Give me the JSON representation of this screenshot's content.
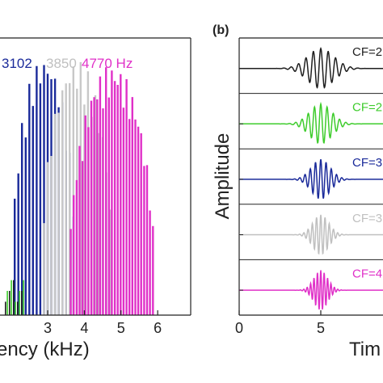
{
  "chart_data": [
    {
      "type": "bar",
      "panel_label": "",
      "xlabel": "ency (kHz)",
      "xticks": [
        "3",
        "4",
        "5",
        "6"
      ],
      "xlim": [
        1.7,
        6.9
      ],
      "ylim": [
        0,
        1.0
      ],
      "legend": [
        {
          "text": "3102",
          "color": "#1a2a9a"
        },
        {
          "text": "3850",
          "color": "#c0c0c0"
        },
        {
          "text": "4770 Hz",
          "color": "#e030c8"
        }
      ],
      "series": [
        {
          "name": "3102",
          "color": "#1a2a9a",
          "center": 2.9,
          "width": 0.9,
          "peak": 0.96,
          "spacing": 0.1
        },
        {
          "name": "3850",
          "color": "#c8c8c8",
          "center": 3.8,
          "width": 1.0,
          "peak": 0.95,
          "spacing": 0.1
        },
        {
          "name": "4770 Hz",
          "color": "#e030c8",
          "center": 4.75,
          "width": 1.2,
          "peak": 0.93,
          "spacing": 0.08
        }
      ],
      "extra_colors": [
        "#1f1f1f",
        "#3ecc2c"
      ]
    },
    {
      "type": "line",
      "panel_label": "(b)",
      "xlabel": "Tim",
      "ylabel": "Amplitude",
      "xticks": [
        "0",
        "5"
      ],
      "xlim": [
        0,
        10
      ],
      "series": [
        {
          "name": "CF=2",
          "color": "#1f1f1f",
          "center": 5.0,
          "width": 1.9,
          "freq": 2.2
        },
        {
          "name": "CF=2",
          "color": "#3ecc2c",
          "center": 5.0,
          "width": 1.6,
          "freq": 2.6
        },
        {
          "name": "CF=3",
          "color": "#1a2a9a",
          "center": 5.0,
          "width": 1.35,
          "freq": 3.1
        },
        {
          "name": "CF=3",
          "color": "#c0c0c0",
          "center": 5.0,
          "width": 1.15,
          "freq": 3.85
        },
        {
          "name": "CF=4",
          "color": "#e030c8",
          "center": 5.0,
          "width": 1.0,
          "freq": 4.8
        }
      ]
    }
  ]
}
